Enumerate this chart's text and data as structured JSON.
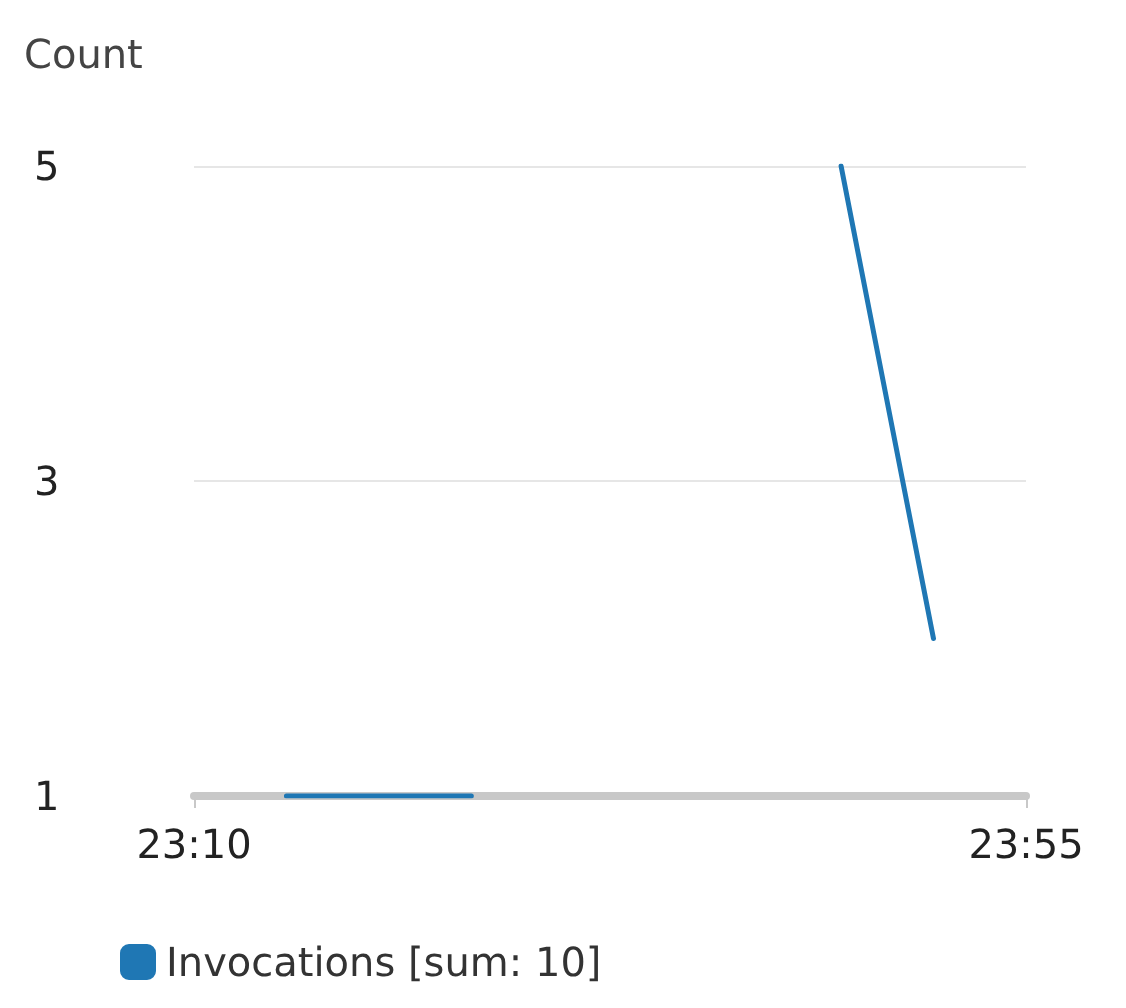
{
  "chart_data": {
    "type": "line",
    "ylabel": "Count",
    "x": [
      23.25,
      23.3333,
      23.4167,
      23.5,
      23.5833,
      23.6667,
      23.75,
      23.8333
    ],
    "series": [
      {
        "name": "Invocations [sum: 10]",
        "color": "#1f77b4",
        "values": [
          1,
          1,
          1,
          null,
          null,
          null,
          5,
          2
        ]
      }
    ],
    "xlim": [
      23.1667,
      23.9167
    ],
    "xticks": [
      {
        "value": 23.1667,
        "label": "23:10"
      },
      {
        "value": 23.9167,
        "label": "23:55"
      }
    ],
    "ylim": [
      1,
      5
    ],
    "yticks": [
      1,
      3,
      5
    ],
    "grid": "y",
    "legend": "bottom left",
    "marker": "none",
    "line_style": "solid"
  }
}
